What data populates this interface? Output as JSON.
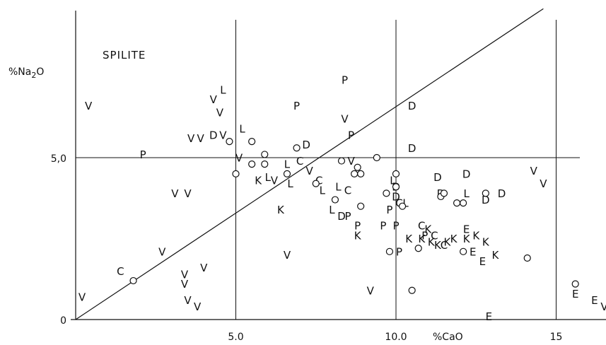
{
  "chart_data": {
    "type": "scatter",
    "title": "",
    "xlabel": "%CaO",
    "ylabel": "%Na2O",
    "xlim": [
      0,
      16.6
    ],
    "ylim": [
      0,
      9.8
    ],
    "grid": false,
    "x_ticks": [
      {
        "value": 5,
        "label": "5.0"
      },
      {
        "value": 10,
        "label": "10.0"
      },
      {
        "value": 15,
        "label": "15"
      }
    ],
    "y_ticks": [
      {
        "value": 0,
        "label": "0"
      },
      {
        "value": 5,
        "label": "5,0"
      }
    ],
    "field_label": "SPILITE",
    "reference_lines": {
      "vertical": [
        5,
        10,
        15
      ],
      "horizontal": [
        5
      ],
      "diagonal": {
        "from": [
          0,
          0
        ],
        "to": [
          14.6,
          9.6
        ]
      }
    },
    "points": [
      {
        "x": 0.4,
        "y": 6.6,
        "label": "V"
      },
      {
        "x": 0.2,
        "y": 0.7,
        "label": "V"
      },
      {
        "x": 2.1,
        "y": 5.1,
        "label": "P"
      },
      {
        "x": 3.1,
        "y": 3.9,
        "label": "V"
      },
      {
        "x": 3.5,
        "y": 3.9,
        "label": "V"
      },
      {
        "x": 3.6,
        "y": 5.6,
        "label": "V"
      },
      {
        "x": 3.9,
        "y": 5.6,
        "label": "V"
      },
      {
        "x": 4.3,
        "y": 6.8,
        "label": "V"
      },
      {
        "x": 4.6,
        "y": 7.1,
        "label": "L"
      },
      {
        "x": 4.5,
        "y": 6.4,
        "label": "V"
      },
      {
        "x": 4.3,
        "y": 5.7,
        "label": "D"
      },
      {
        "x": 4.6,
        "y": 5.7,
        "label": "V"
      },
      {
        "x": 5.2,
        "y": 5.9,
        "label": "L"
      },
      {
        "x": 5.1,
        "y": 5.0,
        "label": "V"
      },
      {
        "x": 5.7,
        "y": 4.3,
        "label": "K"
      },
      {
        "x": 6.0,
        "y": 4.4,
        "label": "L"
      },
      {
        "x": 6.2,
        "y": 4.3,
        "label": "V"
      },
      {
        "x": 6.4,
        "y": 3.4,
        "label": "K"
      },
      {
        "x": 6.7,
        "y": 4.2,
        "label": "L"
      },
      {
        "x": 6.6,
        "y": 4.8,
        "label": "L"
      },
      {
        "x": 7.0,
        "y": 4.9,
        "label": "C"
      },
      {
        "x": 7.2,
        "y": 5.4,
        "label": "D"
      },
      {
        "x": 6.9,
        "y": 6.6,
        "label": "P"
      },
      {
        "x": 7.3,
        "y": 4.6,
        "label": "V"
      },
      {
        "x": 7.6,
        "y": 4.3,
        "label": "C"
      },
      {
        "x": 7.7,
        "y": 4.0,
        "label": "L"
      },
      {
        "x": 8.4,
        "y": 7.4,
        "label": "P"
      },
      {
        "x": 8.4,
        "y": 6.2,
        "label": "V"
      },
      {
        "x": 8.6,
        "y": 5.7,
        "label": "P"
      },
      {
        "x": 8.6,
        "y": 4.9,
        "label": "V"
      },
      {
        "x": 8.2,
        "y": 4.1,
        "label": "L"
      },
      {
        "x": 8.5,
        "y": 4.0,
        "label": "C"
      },
      {
        "x": 8.0,
        "y": 3.4,
        "label": "L"
      },
      {
        "x": 8.3,
        "y": 3.2,
        "label": "D"
      },
      {
        "x": 8.5,
        "y": 3.2,
        "label": "P"
      },
      {
        "x": 8.8,
        "y": 2.9,
        "label": "P"
      },
      {
        "x": 8.8,
        "y": 2.6,
        "label": "K"
      },
      {
        "x": 6.6,
        "y": 2.0,
        "label": "V"
      },
      {
        "x": 4.0,
        "y": 1.6,
        "label": "V"
      },
      {
        "x": 2.7,
        "y": 2.1,
        "label": "V"
      },
      {
        "x": 1.4,
        "y": 1.5,
        "label": "C"
      },
      {
        "x": 3.4,
        "y": 1.4,
        "label": "V"
      },
      {
        "x": 3.4,
        "y": 1.1,
        "label": "V"
      },
      {
        "x": 3.5,
        "y": 0.6,
        "label": "V"
      },
      {
        "x": 3.8,
        "y": 0.4,
        "label": "V"
      },
      {
        "x": 9.2,
        "y": 0.9,
        "label": "V"
      },
      {
        "x": 10.5,
        "y": 6.6,
        "label": "D"
      },
      {
        "x": 10.5,
        "y": 5.3,
        "label": "D"
      },
      {
        "x": 9.9,
        "y": 4.3,
        "label": "L"
      },
      {
        "x": 10.0,
        "y": 3.8,
        "label": "D"
      },
      {
        "x": 10.1,
        "y": 3.6,
        "label": "C"
      },
      {
        "x": 10.3,
        "y": 3.6,
        "label": "L"
      },
      {
        "x": 9.8,
        "y": 3.4,
        "label": "P"
      },
      {
        "x": 9.6,
        "y": 2.9,
        "label": "P"
      },
      {
        "x": 10.0,
        "y": 2.9,
        "label": "P"
      },
      {
        "x": 10.1,
        "y": 2.1,
        "label": "P"
      },
      {
        "x": 10.0,
        "y": 4.1,
        "label": "D"
      },
      {
        "x": 11.3,
        "y": 4.4,
        "label": "D"
      },
      {
        "x": 12.2,
        "y": 4.5,
        "label": "D"
      },
      {
        "x": 11.4,
        "y": 3.9,
        "label": "D"
      },
      {
        "x": 10.8,
        "y": 2.9,
        "label": "C"
      },
      {
        "x": 11.0,
        "y": 2.8,
        "label": "K"
      },
      {
        "x": 10.9,
        "y": 2.6,
        "label": "P"
      },
      {
        "x": 11.2,
        "y": 2.6,
        "label": "C"
      },
      {
        "x": 10.4,
        "y": 2.5,
        "label": "K"
      },
      {
        "x": 10.8,
        "y": 2.5,
        "label": "K"
      },
      {
        "x": 11.1,
        "y": 2.4,
        "label": "K"
      },
      {
        "x": 11.3,
        "y": 2.3,
        "label": "K"
      },
      {
        "x": 11.6,
        "y": 2.4,
        "label": "K"
      },
      {
        "x": 11.5,
        "y": 2.3,
        "label": "C"
      },
      {
        "x": 11.8,
        "y": 2.5,
        "label": "K"
      },
      {
        "x": 12.2,
        "y": 2.5,
        "label": "K"
      },
      {
        "x": 12.2,
        "y": 2.8,
        "label": "E"
      },
      {
        "x": 12.5,
        "y": 2.6,
        "label": "K"
      },
      {
        "x": 12.8,
        "y": 2.4,
        "label": "K"
      },
      {
        "x": 12.4,
        "y": 2.1,
        "label": "E"
      },
      {
        "x": 12.7,
        "y": 1.8,
        "label": "E"
      },
      {
        "x": 13.1,
        "y": 2.0,
        "label": "K"
      },
      {
        "x": 12.2,
        "y": 3.9,
        "label": "L"
      },
      {
        "x": 12.8,
        "y": 3.7,
        "label": "D"
      },
      {
        "x": 13.3,
        "y": 3.9,
        "label": "D"
      },
      {
        "x": 14.3,
        "y": 4.6,
        "label": "V"
      },
      {
        "x": 14.6,
        "y": 4.2,
        "label": "V"
      },
      {
        "x": 15.6,
        "y": 0.8,
        "label": "E"
      },
      {
        "x": 16.2,
        "y": 0.6,
        "label": "E"
      },
      {
        "x": 16.5,
        "y": 0.4,
        "label": "V"
      },
      {
        "x": 12.9,
        "y": 0.1,
        "label": "E"
      },
      {
        "x": 1.8,
        "y": 1.2,
        "label": "o"
      },
      {
        "x": 4.8,
        "y": 5.5,
        "label": "o"
      },
      {
        "x": 5.0,
        "y": 4.5,
        "label": "o"
      },
      {
        "x": 5.5,
        "y": 5.5,
        "label": "o"
      },
      {
        "x": 5.5,
        "y": 4.8,
        "label": "o"
      },
      {
        "x": 5.9,
        "y": 4.8,
        "label": "o"
      },
      {
        "x": 5.9,
        "y": 5.1,
        "label": "o"
      },
      {
        "x": 6.6,
        "y": 4.5,
        "label": "o"
      },
      {
        "x": 6.9,
        "y": 5.3,
        "label": "o"
      },
      {
        "x": 7.5,
        "y": 4.2,
        "label": "o"
      },
      {
        "x": 8.1,
        "y": 3.7,
        "label": "o"
      },
      {
        "x": 8.3,
        "y": 4.9,
        "label": "o"
      },
      {
        "x": 8.7,
        "y": 4.5,
        "label": "o"
      },
      {
        "x": 8.8,
        "y": 4.7,
        "label": "o"
      },
      {
        "x": 8.9,
        "y": 4.5,
        "label": "o"
      },
      {
        "x": 8.9,
        "y": 3.5,
        "label": "o"
      },
      {
        "x": 9.4,
        "y": 5.0,
        "label": "o"
      },
      {
        "x": 9.7,
        "y": 3.9,
        "label": "o"
      },
      {
        "x": 9.8,
        "y": 2.1,
        "label": "o"
      },
      {
        "x": 10.0,
        "y": 4.5,
        "label": "o"
      },
      {
        "x": 10.0,
        "y": 4.1,
        "label": "o"
      },
      {
        "x": 10.2,
        "y": 3.5,
        "label": "o"
      },
      {
        "x": 10.5,
        "y": 0.9,
        "label": "o"
      },
      {
        "x": 10.7,
        "y": 2.2,
        "label": "o"
      },
      {
        "x": 11.4,
        "y": 3.8,
        "label": "o"
      },
      {
        "x": 11.5,
        "y": 3.9,
        "label": "o"
      },
      {
        "x": 11.9,
        "y": 3.6,
        "label": "o"
      },
      {
        "x": 12.1,
        "y": 3.6,
        "label": "o"
      },
      {
        "x": 12.1,
        "y": 2.1,
        "label": "o"
      },
      {
        "x": 12.8,
        "y": 3.9,
        "label": "o"
      },
      {
        "x": 14.1,
        "y": 1.9,
        "label": "o"
      },
      {
        "x": 15.6,
        "y": 1.1,
        "label": "o"
      }
    ]
  }
}
